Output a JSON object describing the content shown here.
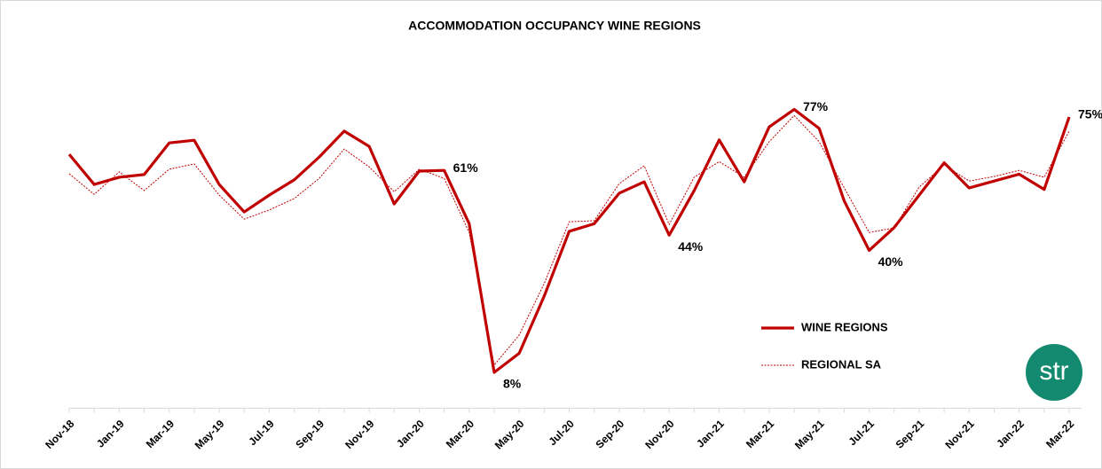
{
  "chart_data": {
    "type": "line",
    "title": "ACCOMMODATION OCCUPANCY WINE REGIONS",
    "categories": [
      "Nov-18",
      null,
      "Jan-19",
      null,
      "Mar-19",
      null,
      "May-19",
      null,
      "Jul-19",
      null,
      "Sep-19",
      null,
      "Nov-19",
      null,
      "Jan-20",
      null,
      "Mar-20",
      null,
      "May-20",
      null,
      "Jul-20",
      null,
      "Sep-20",
      null,
      "Nov-20",
      null,
      "Jan-21",
      null,
      "Mar-21",
      null,
      "May-21",
      null,
      "Jul-21",
      null,
      "Sep-21",
      null,
      "Nov-21",
      null,
      "Jan-22",
      null,
      "Mar-22"
    ],
    "series": [
      {
        "name": "WINE REGIONS",
        "color": "#c00000",
        "style": "solid",
        "values": [
          65.2,
          57.3,
          59.2,
          59.9,
          68.2,
          68.9,
          57.3,
          50.1,
          54.5,
          58.5,
          64.5,
          71.3,
          67.3,
          52.2,
          60.8,
          61,
          47,
          8,
          13,
          28,
          45,
          47,
          55,
          58,
          44,
          55.7,
          69,
          58,
          72.4,
          77,
          72,
          53,
          40,
          46,
          54.5,
          63,
          56.4,
          58.2,
          60,
          56,
          75
        ],
        "value_labels": [
          null,
          null,
          null,
          null,
          null,
          null,
          null,
          null,
          null,
          null,
          null,
          null,
          null,
          null,
          null,
          "61%",
          null,
          "8%",
          null,
          null,
          null,
          null,
          null,
          null,
          "44%",
          null,
          null,
          null,
          null,
          "77%",
          null,
          null,
          "40%",
          null,
          null,
          null,
          null,
          null,
          null,
          null,
          "75%"
        ]
      },
      {
        "name": "REGIONAL SA",
        "color": "#c00000",
        "style": "dotted",
        "values": [
          60.1,
          54.7,
          60.6,
          55.7,
          61.3,
          62.7,
          54.5,
          48.2,
          50.6,
          53.6,
          58.9,
          66.6,
          61.9,
          55.4,
          61.3,
          58.9,
          44.7,
          9.9,
          17.8,
          31.3,
          47.5,
          47.8,
          57.5,
          62.2,
          46.8,
          59.2,
          63.3,
          59.2,
          68.5,
          75.4,
          68.5,
          56.4,
          44.7,
          45.9,
          56.6,
          62.4,
          58.2,
          59.4,
          61,
          59.2,
          71.3
        ]
      }
    ],
    "ylim": [
      0,
      85
    ],
    "legend": "lower right",
    "logo": "str"
  }
}
